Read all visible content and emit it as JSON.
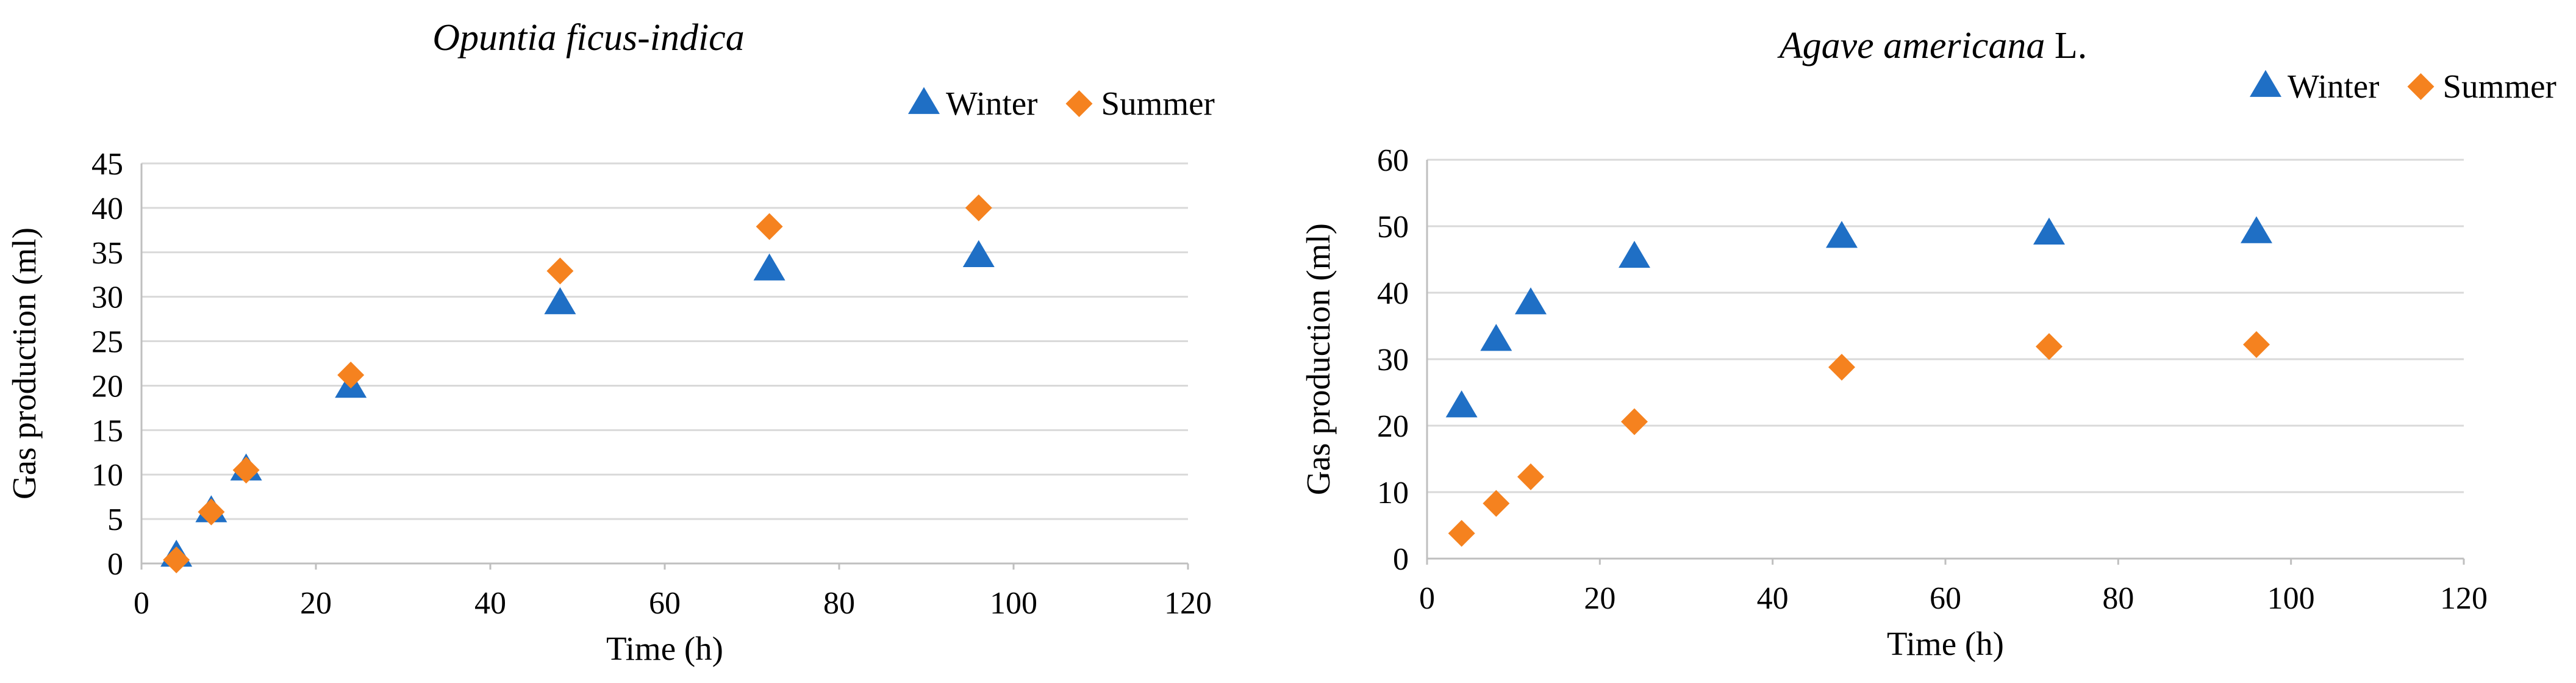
{
  "colors": {
    "winter": "#1f6fc5",
    "summer": "#f5821f"
  },
  "chart_data": [
    {
      "type": "scatter",
      "title": "Opuntia ficus-indica",
      "title_italic_part": "Opuntia ficus-indica",
      "title_plain_part": "",
      "xlabel": "Time (h)",
      "ylabel": "Gas production (ml)",
      "xlim": [
        0,
        120
      ],
      "ylim": [
        0,
        45
      ],
      "xticks": [
        0,
        20,
        40,
        60,
        80,
        100,
        120
      ],
      "yticks": [
        0,
        5,
        10,
        15,
        20,
        25,
        30,
        35,
        40,
        45
      ],
      "grid": true,
      "legend_position": "top-right",
      "series": [
        {
          "name": "Winter",
          "marker": "triangle",
          "color": "#1f6fc5",
          "x": [
            4,
            8,
            12,
            24,
            48,
            72,
            96
          ],
          "y": [
            0.8,
            5.8,
            10.5,
            19.8,
            29.2,
            33.0,
            34.5
          ]
        },
        {
          "name": "Summer",
          "marker": "diamond",
          "color": "#f5821f",
          "x": [
            4,
            8,
            12,
            24,
            48,
            72,
            96
          ],
          "y": [
            0.4,
            5.8,
            10.5,
            21.2,
            32.9,
            37.9,
            40.0
          ]
        }
      ]
    },
    {
      "type": "scatter",
      "title": "Agave americana L.",
      "title_italic_part": "Agave americana",
      "title_plain_part": " L.",
      "xlabel": "Time (h)",
      "ylabel": "Gas production (ml)",
      "xlim": [
        0,
        120
      ],
      "ylim": [
        0,
        60
      ],
      "xticks": [
        0,
        20,
        40,
        60,
        80,
        100,
        120
      ],
      "yticks": [
        0,
        10,
        20,
        30,
        40,
        50,
        60
      ],
      "grid": true,
      "legend_position": "top-right",
      "series": [
        {
          "name": "Winter",
          "marker": "triangle",
          "color": "#1f6fc5",
          "x": [
            4,
            8,
            12,
            24,
            48,
            72,
            96
          ],
          "y": [
            22.8,
            32.8,
            38.3,
            45.3,
            48.3,
            48.8,
            49.0
          ]
        },
        {
          "name": "Summer",
          "marker": "diamond",
          "color": "#f5821f",
          "x": [
            4,
            8,
            12,
            24,
            48,
            72,
            96
          ],
          "y": [
            3.8,
            8.3,
            12.3,
            20.6,
            28.8,
            31.9,
            32.2
          ]
        }
      ]
    }
  ]
}
